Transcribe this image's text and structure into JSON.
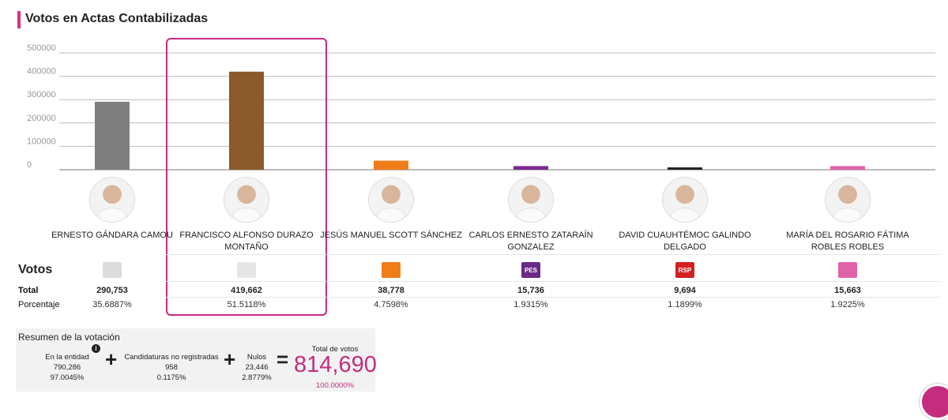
{
  "header": {
    "title": "Votos en Actas Contabilizadas"
  },
  "chart_data": {
    "type": "bar",
    "title": "Votos en Actas Contabilizadas",
    "categories": [
      "ERNESTO GÁNDARA CAMOU",
      "FRANCISCO ALFONSO DURAZO MONTAÑO",
      "JESÚS MANUEL SCOTT SÁNCHEZ",
      "CARLOS ERNESTO ZATARAÍN GONZALEZ",
      "DAVID CUAUHTÉMOC GALINDO DELGADO",
      "MARÍA DEL ROSARIO FÁTIMA ROBLES ROBLES"
    ],
    "values": [
      290753,
      419662,
      38778,
      15736,
      9694,
      15663
    ],
    "colors": [
      "#7f7f7f",
      "#8b5a2b",
      "#f07d1a",
      "#7b2a8f",
      "#222222",
      "#e063a8"
    ],
    "yticks": [
      "0",
      "100000",
      "200000",
      "300000",
      "400000",
      "500000"
    ],
    "ylim": [
      0,
      500000
    ],
    "grid": true,
    "highlighted": "FRANCISCO ALFONSO DURAZO MONTAÑO"
  },
  "candidates": [
    {
      "name": "ERNESTO GÁNDARA CAMOU",
      "party_icon": "pri-pan-prd-coalition-logo",
      "logo_color": "#dcdcdc",
      "logo_text": "",
      "total": "290,753",
      "pct": "35.6887%"
    },
    {
      "name": "FRANCISCO ALFONSO DURAZO MONTAÑO",
      "party_icon": "morena-pt-pvem-coalition-logo",
      "logo_color": "#e6e6e6",
      "logo_text": "",
      "total": "419,662",
      "pct": "51.5118%"
    },
    {
      "name": "JESÚS MANUEL SCOTT SÁNCHEZ",
      "party_icon": "movimiento-ciudadano-logo",
      "logo_color": "#f07d1a",
      "logo_text": "",
      "total": "38,778",
      "pct": "4.7598%"
    },
    {
      "name": "CARLOS ERNESTO ZATARAÍN GONZALEZ",
      "party_icon": "pes-logo",
      "logo_color": "#6a2a86",
      "logo_text": "PES",
      "total": "15,736",
      "pct": "1.9315%"
    },
    {
      "name": "DAVID CUAUHTÉMOC GALINDO DELGADO",
      "party_icon": "rsp-logo",
      "logo_color": "#d32020",
      "logo_text": "RSP",
      "total": "9,694",
      "pct": "1.1899%"
    },
    {
      "name": "MARÍA DEL ROSARIO FÁTIMA ROBLES ROBLES",
      "party_icon": "fuerza-por-mexico-logo",
      "logo_color": "#e063a8",
      "logo_text": "",
      "total": "15,663",
      "pct": "1.9225%"
    }
  ],
  "table": {
    "votos_label": "Votos",
    "total_label": "Total",
    "pct_label": "Porcentaje"
  },
  "summary": {
    "title": "Resumen de la votación",
    "entidad_label": "En la entidad",
    "entidad_value": "790,286",
    "entidad_pct": "97.0045%",
    "no_reg_label": "Candidaturas no registradas",
    "no_reg_value": "958",
    "no_reg_pct": "0.1175%",
    "nulos_label": "Nulos",
    "nulos_value": "23,446",
    "nulos_pct": "2.8779%",
    "total_label": "Total de votos",
    "total_value": "814,690",
    "total_pct": "100.0000%",
    "plus": "+",
    "equals": "=",
    "info": "i"
  }
}
